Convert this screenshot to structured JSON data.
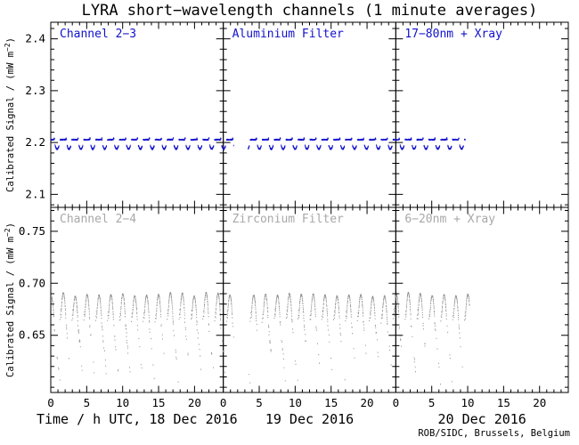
{
  "chart_data": {
    "type": "scatter",
    "title": "LYRA short−wavelength channels (1 minute averages)",
    "footer": "ROB/SIDC, Brussels, Belgium",
    "grid": "off",
    "x_axis": {
      "hours_per_panel": 24,
      "major_ticks": [
        0,
        5,
        10,
        15,
        20
      ],
      "tick_labels": [
        "0",
        "5",
        "10",
        "15",
        "20"
      ],
      "minor_step_h": 1,
      "panel_titles": [
        "Time / h UTC, 18 Dec 2016",
        "19 Dec 2016",
        "20 Dec 2016"
      ]
    },
    "ylabel_parts": {
      "pre": "Calibrated Signal / (mW m",
      "sup": "−2",
      "post": ")"
    },
    "rows": [
      {
        "name": "short-wavelength-channel",
        "color": "#1111cc",
        "label_color": "#1111cc",
        "ylim": [
          2.075,
          2.432
        ],
        "yticks": [
          2.1,
          2.2,
          2.3,
          2.4
        ],
        "ytick_labels": [
          "2.1",
          "2.2",
          "2.3",
          "2.4"
        ],
        "minor_step": 0.02,
        "panel_labels": [
          "Channel 2−3",
          "Aluminium Filter",
          "17−80nm + Xray"
        ],
        "pattern": {
          "kind": "dash-and-dip",
          "baseline": 2.2055,
          "bump_amp": 0.0032,
          "dip_level": 2.1945,
          "dip_depth": 0.0065,
          "dash_phase": [
            0.0,
            0.56
          ],
          "dip_phase": [
            0.6,
            0.93
          ]
        }
      },
      {
        "name": "long-wavelength-channel",
        "color": "#8f8f8f",
        "label_color": "#a8a8a8",
        "ylim": [
          0.595,
          0.773
        ],
        "yticks": [
          0.65,
          0.7,
          0.75
        ],
        "ytick_labels": [
          "0.65",
          "0.70",
          "0.75"
        ],
        "minor_step": 0.01,
        "panel_labels": [
          "Channel 2−4",
          "Zirconium Filter",
          "6−20nm + Xray"
        ],
        "pattern": {
          "kind": "arch-and-tail",
          "arch_base": 0.6655,
          "arch_amp": 0.0235,
          "pre_rise_start": 0.6625,
          "arch_phase": [
            0.09,
            0.5
          ],
          "tail_phase": [
            0.5,
            1.0
          ],
          "tail_drop": 0.06
        }
      }
    ],
    "orbit": {
      "period_h": 1.6551724,
      "orbits_per_day": 14.5,
      "phase_offset": 0.27
    },
    "coverage": {
      "days": [
        "18 Dec 2016",
        "19 Dec 2016",
        "20 Dec 2016"
      ],
      "gaps": [
        {
          "day_index": 1,
          "start_h": 1.4,
          "end_h": 3.4
        }
      ],
      "end_of_data": {
        "day_index": 2,
        "top_row_end_h": 9.6,
        "bottom_row_end_h": 10.2
      }
    }
  }
}
